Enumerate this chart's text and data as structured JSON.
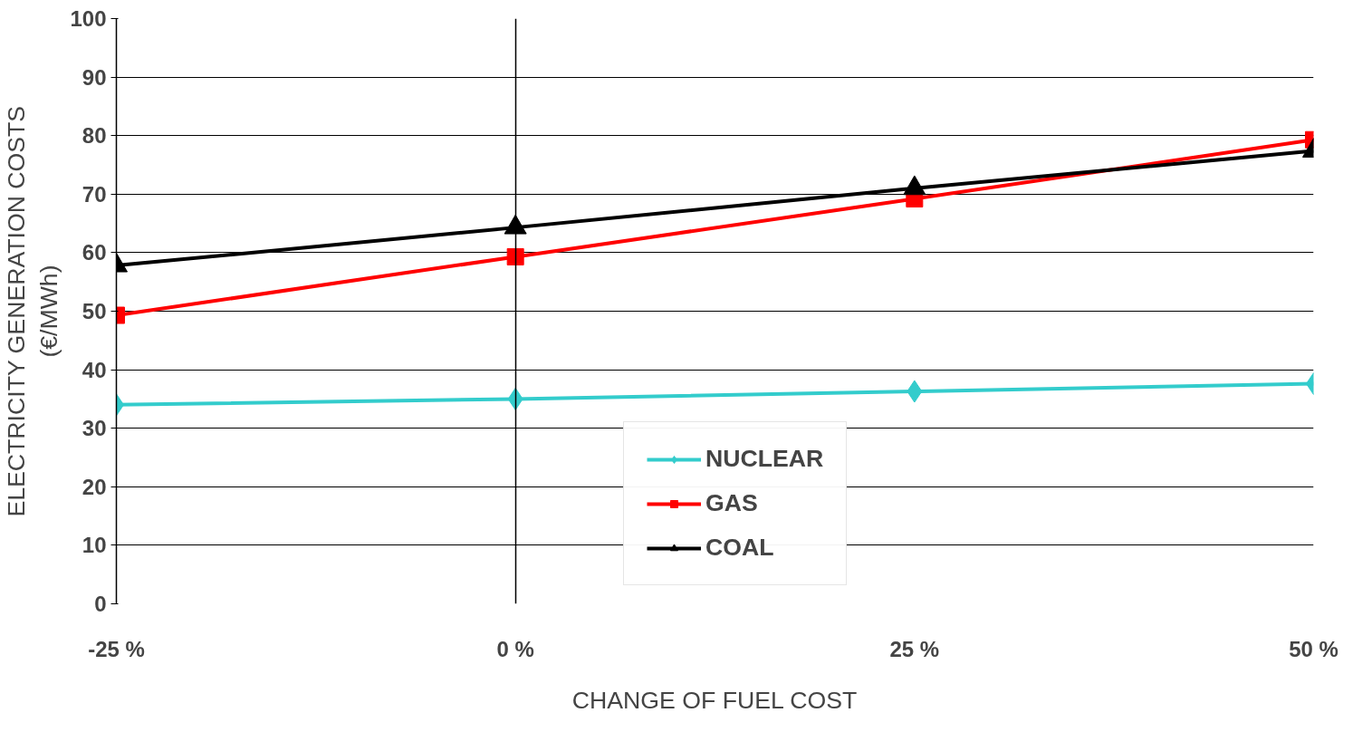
{
  "chart_data": {
    "type": "line",
    "xlabel": "CHANGE OF FUEL COST",
    "ylabel": "ELECTRICITY GENERATION COSTS\n(€/MWh)",
    "x": [
      -25,
      0,
      25,
      50
    ],
    "xlim": [
      -25,
      50
    ],
    "xticks": [
      {
        "value": -25,
        "label": "-25 %"
      },
      {
        "value": 0,
        "label": "0 %"
      },
      {
        "value": 25,
        "label": "25 %"
      },
      {
        "value": 50,
        "label": "50 %"
      }
    ],
    "ylim": [
      0,
      100
    ],
    "yticks": [
      0,
      10,
      20,
      30,
      40,
      50,
      60,
      70,
      80,
      90,
      100
    ],
    "grid": "y",
    "legend": "bottom",
    "series": [
      {
        "name": "NUCLEAR",
        "color": "#33cccc",
        "marker": "diamond",
        "values": [
          34,
          35,
          36.3,
          37.6
        ]
      },
      {
        "name": "GAS",
        "color": "#ff0000",
        "marker": "square",
        "values": [
          49.3,
          59.3,
          69.2,
          79.3
        ]
      },
      {
        "name": "COAL",
        "color": "#000000",
        "marker": "triangle",
        "values": [
          57.8,
          64.3,
          71,
          77.4
        ]
      }
    ]
  }
}
